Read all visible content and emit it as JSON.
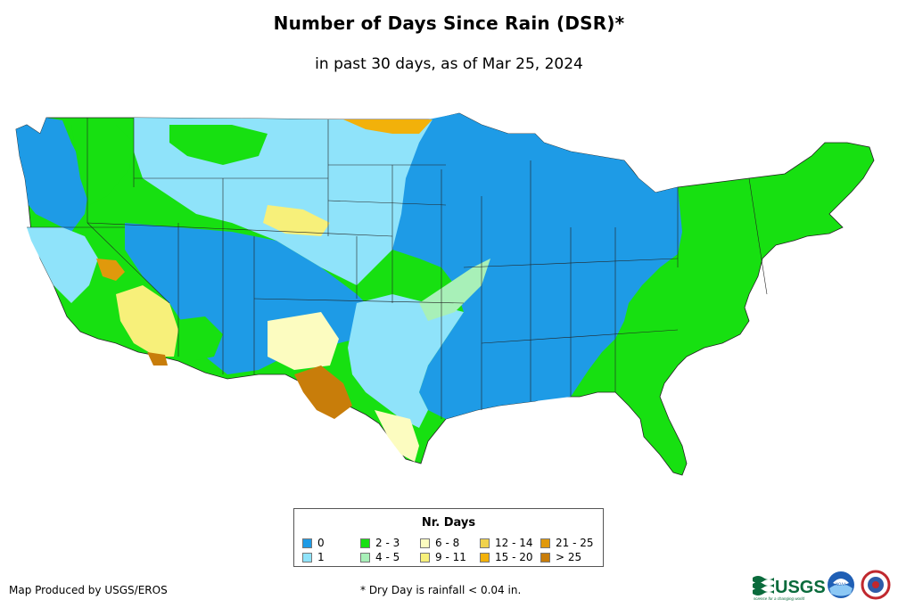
{
  "map": {
    "title": "Number of Days Since Rain (DSR)*",
    "subtitle": "in past 30 days, as of Mar 25, 2024"
  },
  "legend": {
    "title": "Nr. Days",
    "items": [
      {
        "label": "0",
        "color": "#1e9be6"
      },
      {
        "label": "1",
        "color": "#8fe3fa"
      },
      {
        "label": "2 - 3",
        "color": "#17e011"
      },
      {
        "label": "4 - 5",
        "color": "#a8f0b8"
      },
      {
        "label": "6 - 8",
        "color": "#fcfcc0"
      },
      {
        "label": "9 - 11",
        "color": "#f7f07a"
      },
      {
        "label": "12 - 14",
        "color": "#f0d24c"
      },
      {
        "label": "15 - 20",
        "color": "#f2b10a"
      },
      {
        "label": "21 - 25",
        "color": "#e0990c"
      },
      {
        "label": "> 25",
        "color": "#c87d0a"
      }
    ]
  },
  "footer": {
    "credit": "Map Produced by USGS/EROS",
    "footnote": "* Dry Day is rainfall < 0.04 in.",
    "usgs_logo_text": "USGS",
    "usgs_tagline": "science for a changing world",
    "noaa_text": "NOAA"
  }
}
